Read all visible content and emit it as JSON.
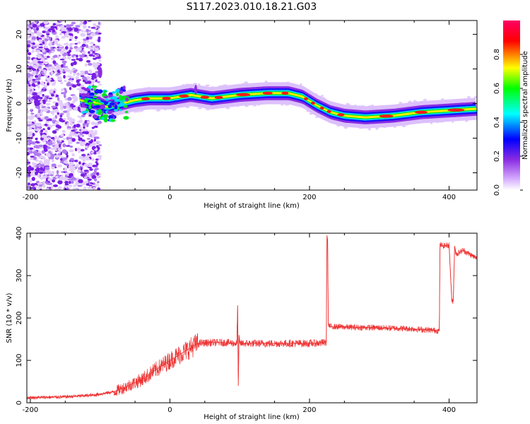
{
  "figure": {
    "title": "S117.2023.010.18.21.G03"
  },
  "chart_data": [
    {
      "type": "heatmap",
      "xlabel": "Height of straight line (km)",
      "ylabel": "Frequency (Hz)",
      "xlim": [
        -205,
        440
      ],
      "ylim": [
        -25,
        24
      ],
      "x_ticks": [
        -200,
        0,
        200,
        400
      ],
      "y_ticks": [
        -20,
        -10,
        0,
        10,
        20
      ],
      "colorbar": {
        "label": "Normalized spectral amplitude",
        "range": [
          0,
          1
        ],
        "ticks": [
          0.0,
          0.2,
          0.4,
          0.6,
          0.8
        ],
        "colors": [
          "#ffffff",
          "#d9b3ff",
          "#8a2be2",
          "#0000ff",
          "#00ffff",
          "#00ff00",
          "#ffff00",
          "#ff0000",
          "#ff0066"
        ]
      },
      "ridge": {
        "x": [
          -130,
          -110,
          -90,
          -70,
          -50,
          -30,
          0,
          30,
          60,
          100,
          140,
          170,
          190,
          210,
          230,
          250,
          280,
          320,
          360,
          400,
          440
        ],
        "y": [
          1.0,
          0.5,
          -1.0,
          0.0,
          1.0,
          1.5,
          1.5,
          2.5,
          1.5,
          2.5,
          3.0,
          3.0,
          2.0,
          -0.5,
          -2.5,
          -3.5,
          -4.0,
          -3.5,
          -2.5,
          -2.0,
          -1.5
        ]
      },
      "grid": false
    },
    {
      "type": "line",
      "xlabel": "Height of straight line (km)",
      "ylabel": "SNR (10 * v/v)",
      "xlim": [
        -205,
        440
      ],
      "ylim": [
        0,
        400
      ],
      "x_ticks": [
        -200,
        0,
        200,
        400
      ],
      "y_ticks": [
        0,
        100,
        200,
        300,
        400
      ],
      "color": "#ee3333",
      "series": [
        {
          "x": [
            -205,
            -150,
            -110,
            -80,
            -60,
            -40,
            -20,
            0,
            20,
            40,
            60,
            80,
            96,
            97,
            98,
            99,
            100,
            120,
            160,
            200,
            224,
            225,
            226,
            227,
            228,
            230,
            260,
            300,
            340,
            386,
            387,
            390,
            400,
            404,
            406,
            408,
            410,
            420,
            440
          ],
          "y": [
            12,
            14,
            18,
            26,
            40,
            55,
            78,
            100,
            120,
            140,
            142,
            142,
            140,
            230,
            40,
            160,
            140,
            140,
            140,
            140,
            142,
            395,
            380,
            185,
            180,
            180,
            178,
            177,
            175,
            170,
            375,
            370,
            372,
            240,
            240,
            370,
            350,
            360,
            340
          ]
        }
      ],
      "grid": false
    }
  ]
}
